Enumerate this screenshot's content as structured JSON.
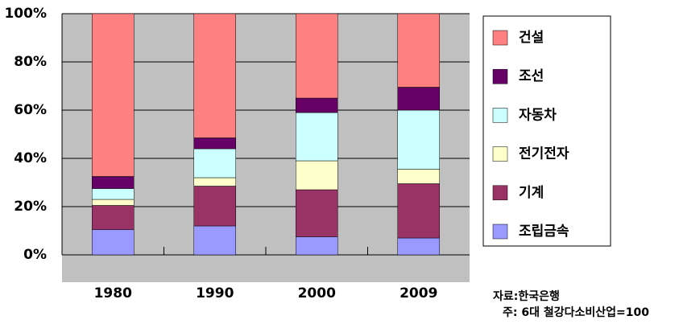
{
  "chart_data": {
    "type": "stacked-bar",
    "categories": [
      "1980",
      "1990",
      "2000",
      "2009"
    ],
    "series": [
      {
        "name": "조립금속",
        "color": "#9999ff",
        "values": [
          10.5,
          12,
          7.5,
          7
        ]
      },
      {
        "name": "기계",
        "color": "#993366",
        "values": [
          10,
          16.5,
          19.5,
          22.5
        ]
      },
      {
        "name": "전기전자",
        "color": "#ffffcc",
        "values": [
          2.5,
          3.5,
          12,
          6
        ]
      },
      {
        "name": "자동차",
        "color": "#ccffff",
        "values": [
          4.5,
          12,
          20,
          24.5
        ]
      },
      {
        "name": "조선",
        "color": "#660066",
        "values": [
          5,
          4.5,
          6,
          9.5
        ]
      },
      {
        "name": "건설",
        "color": "#ff8080",
        "values": [
          67.5,
          51.5,
          35,
          30.5
        ]
      }
    ],
    "ylim": [
      0,
      100
    ],
    "yticks": [
      {
        "value": 0,
        "label": "0%"
      },
      {
        "value": 20,
        "label": "20%"
      },
      {
        "value": 40,
        "label": "40%"
      },
      {
        "value": 60,
        "label": "60%"
      },
      {
        "value": 80,
        "label": "80%"
      },
      {
        "value": 100,
        "label": "100%"
      }
    ],
    "grid": true,
    "legend": "right",
    "source": "자료:한국은행",
    "note": "주: 6대 철강다소비산업=100"
  }
}
